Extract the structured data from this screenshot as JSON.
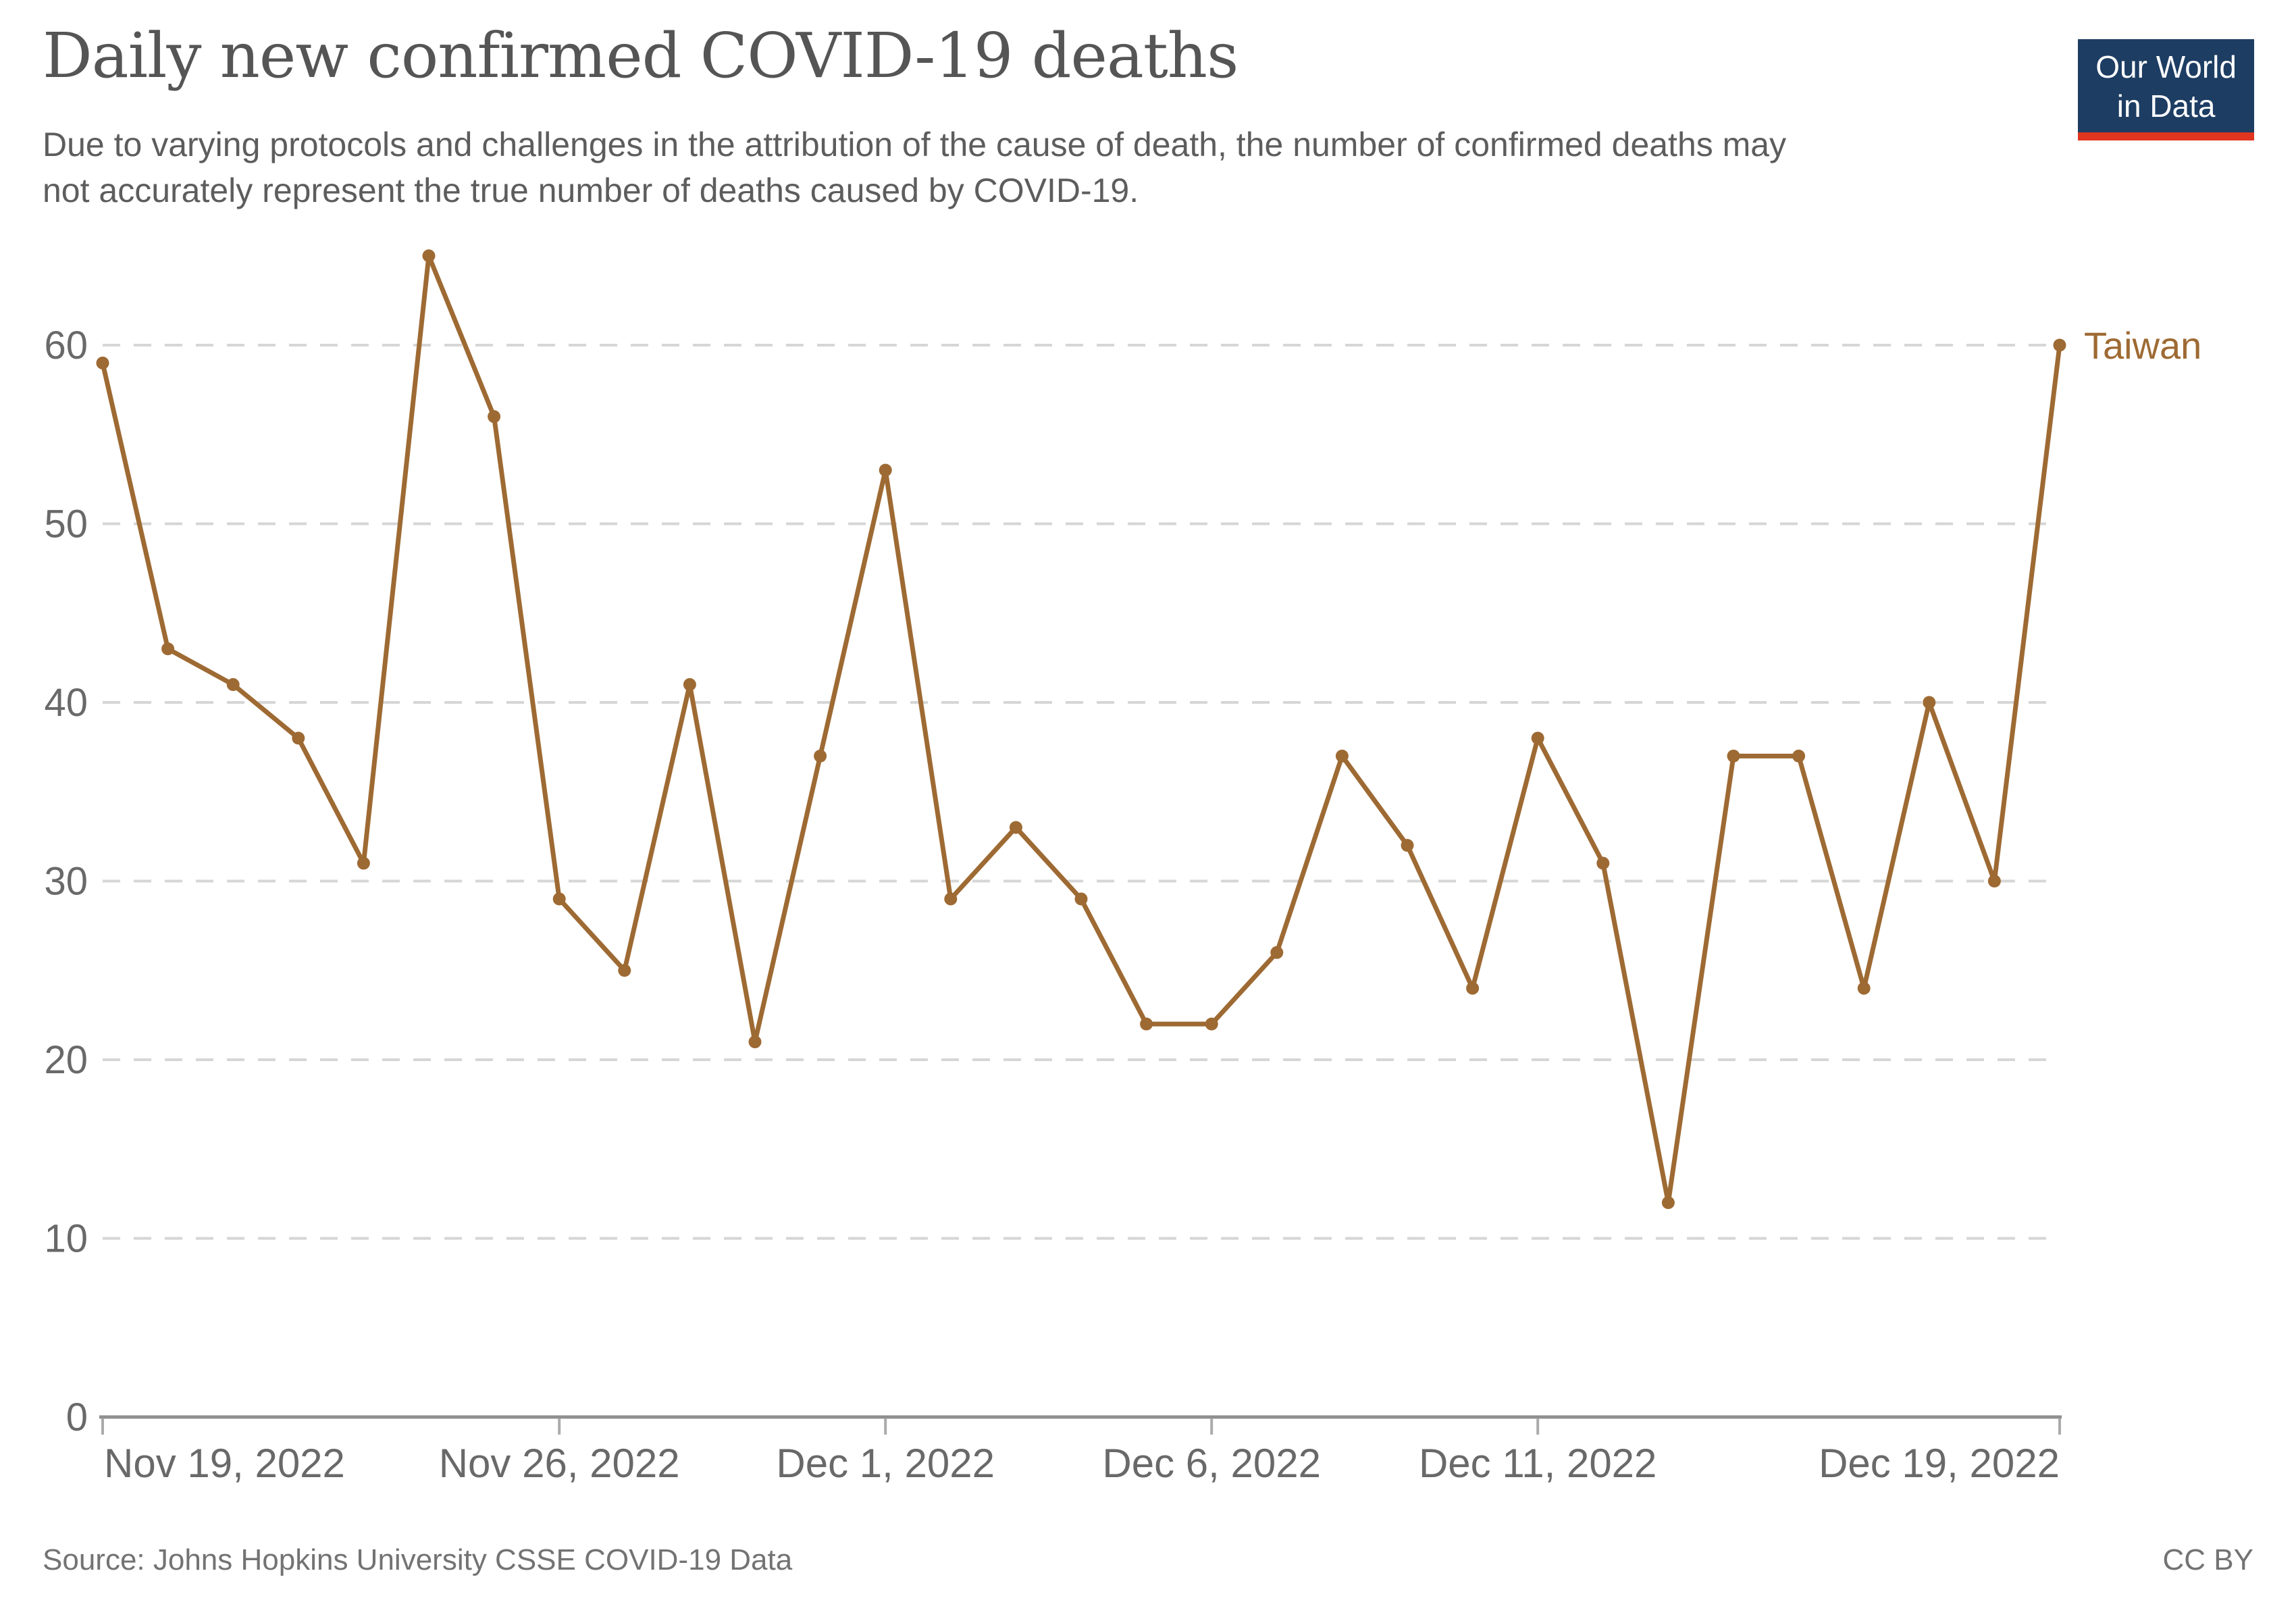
{
  "header": {
    "title": "Daily new confirmed COVID-19 deaths",
    "subtitle_lines": [
      "Due to varying protocols and challenges in the attribution of the cause of death, the number of confirmed deaths may",
      "not accurately represent the true number of deaths caused by COVID-19."
    ],
    "logo": {
      "line1": "Our World",
      "line2": "in Data",
      "bg_color": "#1d3d63",
      "accent_color": "#e0351f",
      "text_color": "#ffffff"
    }
  },
  "chart_data": {
    "type": "line",
    "title": "Daily new confirmed COVID-19 deaths",
    "x": [
      "Nov 19, 2022",
      "Nov 20, 2022",
      "Nov 21, 2022",
      "Nov 22, 2022",
      "Nov 23, 2022",
      "Nov 24, 2022",
      "Nov 25, 2022",
      "Nov 26, 2022",
      "Nov 27, 2022",
      "Nov 28, 2022",
      "Nov 29, 2022",
      "Nov 30, 2022",
      "Dec 1, 2022",
      "Dec 2, 2022",
      "Dec 3, 2022",
      "Dec 4, 2022",
      "Dec 5, 2022",
      "Dec 6, 2022",
      "Dec 7, 2022",
      "Dec 8, 2022",
      "Dec 9, 2022",
      "Dec 10, 2022",
      "Dec 11, 2022",
      "Dec 12, 2022",
      "Dec 13, 2022",
      "Dec 14, 2022",
      "Dec 15, 2022",
      "Dec 16, 2022",
      "Dec 17, 2022",
      "Dec 18, 2022",
      "Dec 19, 2022"
    ],
    "series": [
      {
        "name": "Taiwan",
        "color": "#9e6a33",
        "values": [
          59,
          43,
          41,
          38,
          31,
          65,
          56,
          29,
          25,
          41,
          21,
          37,
          53,
          29,
          33,
          29,
          22,
          22,
          26,
          37,
          32,
          24,
          38,
          31,
          12,
          37,
          37,
          24,
          40,
          30,
          60
        ]
      }
    ],
    "x_ticks": [
      {
        "index": 0,
        "label": "Nov 19, 2022",
        "align": "start"
      },
      {
        "index": 7,
        "label": "Nov 26, 2022",
        "align": "middle"
      },
      {
        "index": 12,
        "label": "Dec 1, 2022",
        "align": "middle"
      },
      {
        "index": 17,
        "label": "Dec 6, 2022",
        "align": "middle"
      },
      {
        "index": 22,
        "label": "Dec 11, 2022",
        "align": "middle"
      },
      {
        "index": 30,
        "label": "Dec 19, 2022",
        "align": "end"
      }
    ],
    "y_ticks": [
      0,
      10,
      20,
      30,
      40,
      50,
      60
    ],
    "ylim": [
      0,
      60
    ],
    "grid": "dashed-horizontal",
    "legend_position": "end-of-line-label",
    "axis_color": "#8f8f8f",
    "tick_mark_color": "#ababab",
    "grid_color": "#d6d6d6",
    "tick_label_color": "#696969"
  },
  "footer": {
    "source": "Source: Johns Hopkins University CSSE COVID-19 Data",
    "license": "CC BY"
  }
}
